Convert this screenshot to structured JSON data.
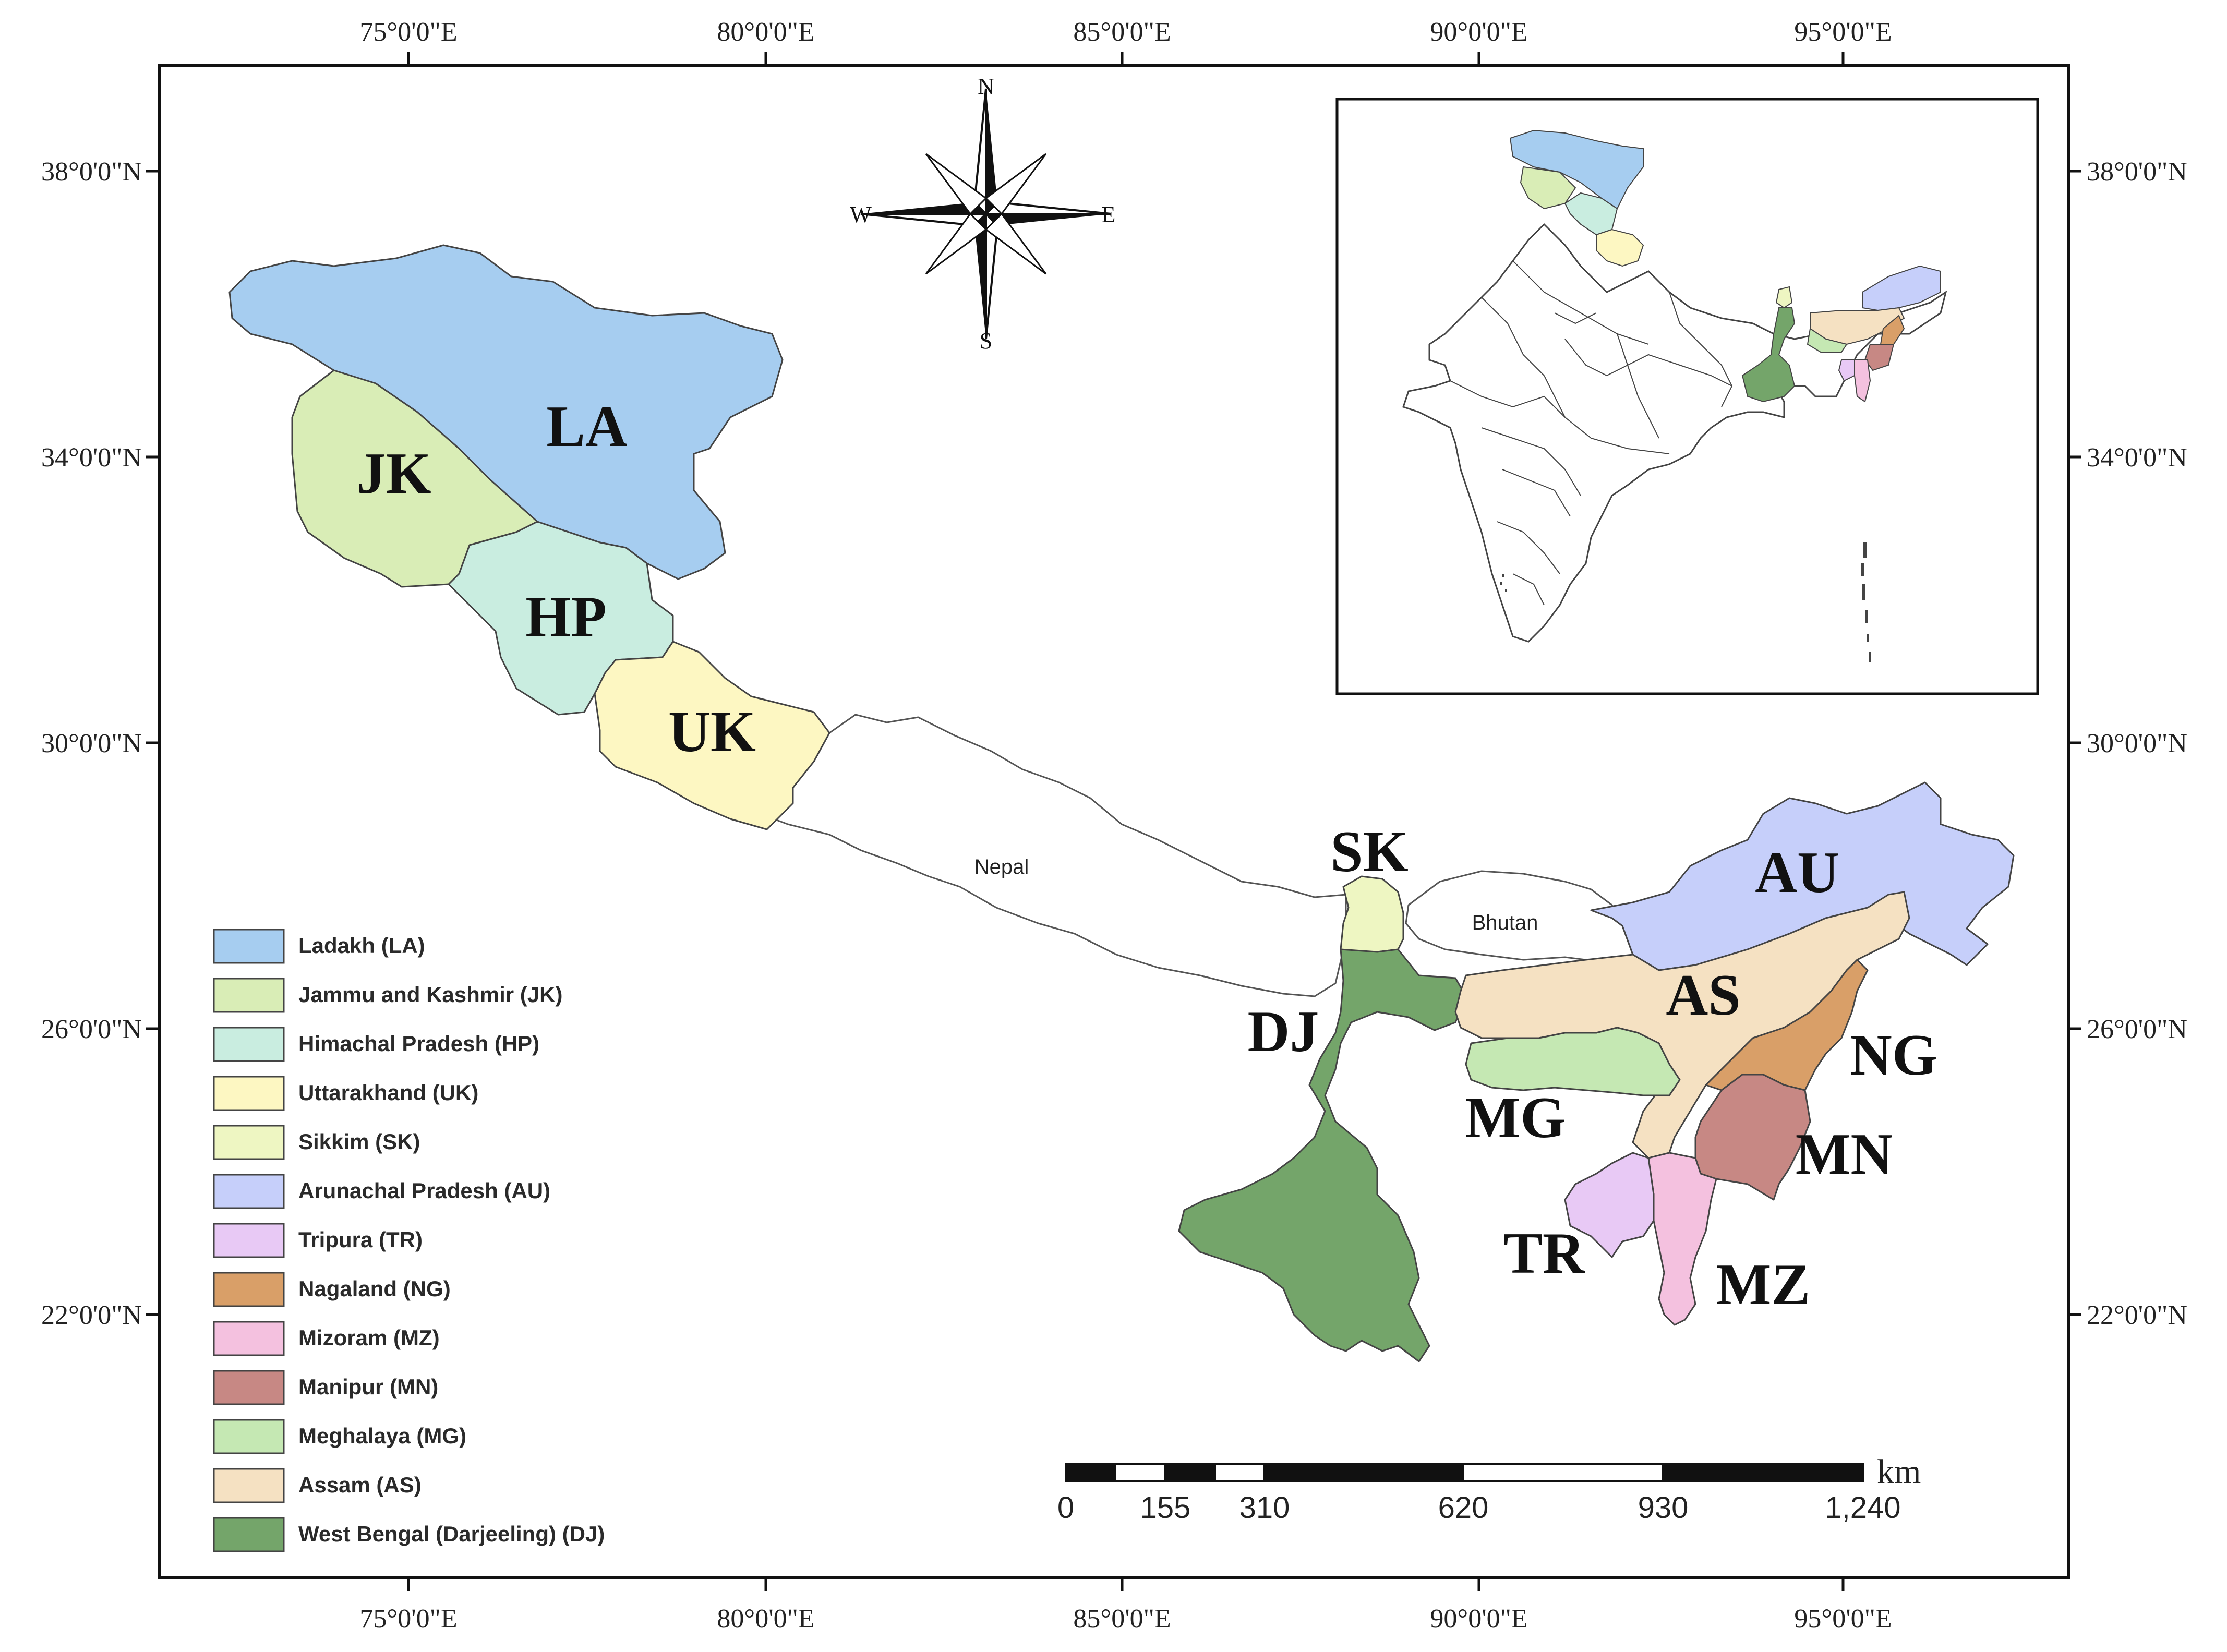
{
  "axes": {
    "lon_labels": [
      "75°0'0\"E",
      "80°0'0\"E",
      "85°0'0\"E",
      "90°0'0\"E",
      "95°0'0\"E"
    ],
    "lat_labels": [
      "38°0'0\"N",
      "34°0'0\"N",
      "30°0'0\"N",
      "26°0'0\"N",
      "22°0'0\"N"
    ]
  },
  "compass": {
    "n": "N",
    "s": "S",
    "e": "E",
    "w": "W"
  },
  "regions": {
    "LA": {
      "code": "LA",
      "name": "Ladakh (LA)",
      "color": "#a6cdf0"
    },
    "JK": {
      "code": "JK",
      "name": "Jammu and Kashmir (JK)",
      "color": "#d9edb6"
    },
    "HP": {
      "code": "HP",
      "name": "Himachal Pradesh (HP)",
      "color": "#c9ede0"
    },
    "UK": {
      "code": "UK",
      "name": "Uttarakhand (UK)",
      "color": "#fdf7c2"
    },
    "SK": {
      "code": "SK",
      "name": "Sikkim (SK)",
      "color": "#eef6c2"
    },
    "AU": {
      "code": "AU",
      "name": "Arunachal Pradesh (AU)",
      "color": "#c6cffa"
    },
    "TR": {
      "code": "TR",
      "name": "Tripura (TR)",
      "color": "#e8c9f5"
    },
    "NG": {
      "code": "NG",
      "name": "Nagaland (NG)",
      "color": "#d99f68"
    },
    "MZ": {
      "code": "MZ",
      "name": "Mizoram (MZ)",
      "color": "#f4c1df"
    },
    "MN": {
      "code": "MN",
      "name": "Manipur (MN)",
      "color": "#c78884"
    },
    "MG": {
      "code": "MG",
      "name": "Meghalaya (MG)",
      "color": "#c5e8b3"
    },
    "AS": {
      "code": "AS",
      "name": "Assam (AS)",
      "color": "#f5e1c2"
    },
    "DJ": {
      "code": "DJ",
      "name": "West Bengal (Darjeeling) (DJ)",
      "color": "#74a56a"
    }
  },
  "country_labels": {
    "nepal": "Nepal",
    "bhutan": "Bhutan"
  },
  "scale_bar": {
    "labels": [
      "0",
      "155",
      "310",
      "620",
      "930",
      "1,240"
    ],
    "unit": "km"
  }
}
